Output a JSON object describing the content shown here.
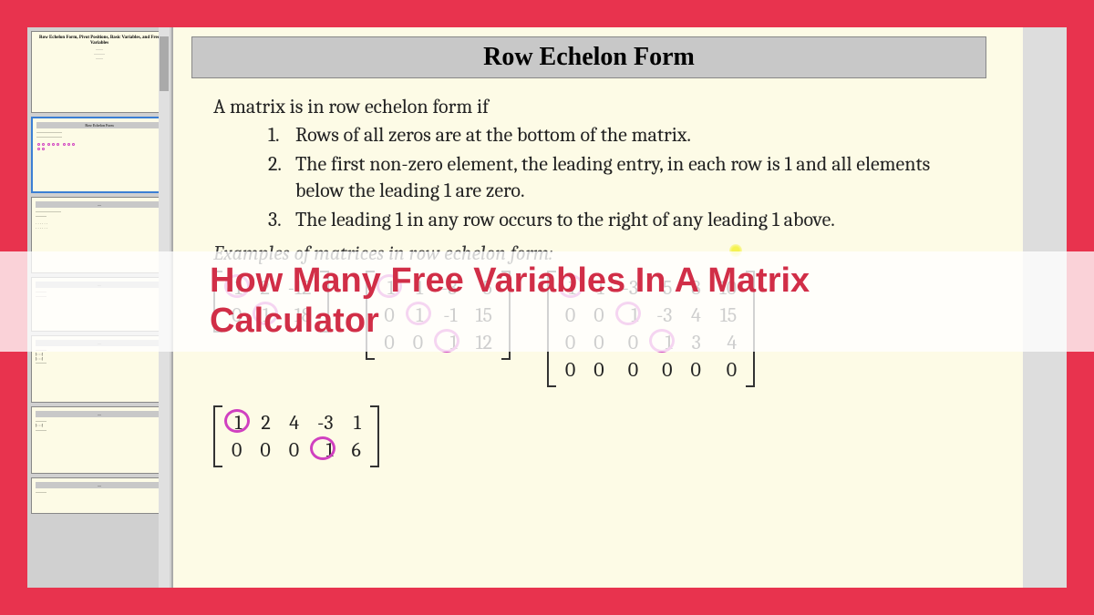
{
  "colors": {
    "page_bg": "#e8334e",
    "slide_bg": "#fdfbe6",
    "titlebar_bg": "#c8c8c8",
    "pivot_stroke": "#d040c0",
    "overlay_text": "#d12e47",
    "overlay_bg": "rgba(255,255,255,0.78)",
    "matrix_stroke": "#333333"
  },
  "presentation": {
    "thumb1_title": "Row Echelon Form, Pivot Positions, Basic Variables, and Free Variables",
    "thumb2_header": "Row Echelon Form"
  },
  "slide": {
    "title": "Row Echelon Form",
    "intro": "A matrix is in row echelon form if",
    "rules": [
      "Rows of all zeros are at the bottom of the matrix.",
      "The first non-zero element, the leading entry, in each row is 1 and all elements below the leading 1 are zero.",
      "The leading 1 in any row occurs to the right of any leading 1 above."
    ],
    "examples_label": "Examples of matrices in row echelon form:"
  },
  "matrices": {
    "m1": {
      "rows": [
        [
          "1",
          "2",
          "-12"
        ],
        [
          "0",
          "1",
          "18"
        ]
      ],
      "pivots": [
        [
          0,
          0
        ],
        [
          1,
          1
        ]
      ]
    },
    "m2": {
      "rows": [
        [
          "1",
          "1",
          "-3",
          "5"
        ],
        [
          "0",
          "1",
          "-1",
          "15"
        ],
        [
          "0",
          "0",
          "1",
          "12"
        ]
      ],
      "pivots": [
        [
          0,
          0
        ],
        [
          1,
          1
        ],
        [
          2,
          2
        ]
      ]
    },
    "m3": {
      "rows": [
        [
          "1",
          "1",
          "-3",
          "5",
          "8",
          "10"
        ],
        [
          "0",
          "0",
          "1",
          "-3",
          "4",
          "15"
        ],
        [
          "0",
          "0",
          "0",
          "1",
          "3",
          "4"
        ],
        [
          "0",
          "0",
          "0",
          "0",
          "0",
          "0"
        ]
      ],
      "pivots": [
        [
          0,
          0
        ],
        [
          1,
          2
        ],
        [
          2,
          3
        ]
      ]
    },
    "m4": {
      "rows": [
        [
          "1",
          "2",
          "4",
          "-3",
          "1"
        ],
        [
          "0",
          "0",
          "0",
          "1",
          "6"
        ]
      ],
      "pivots": [
        [
          0,
          0
        ],
        [
          1,
          3
        ]
      ]
    }
  },
  "overlay": {
    "line1": "How Many Free Variables In A Matrix",
    "line2": "Calculator"
  }
}
